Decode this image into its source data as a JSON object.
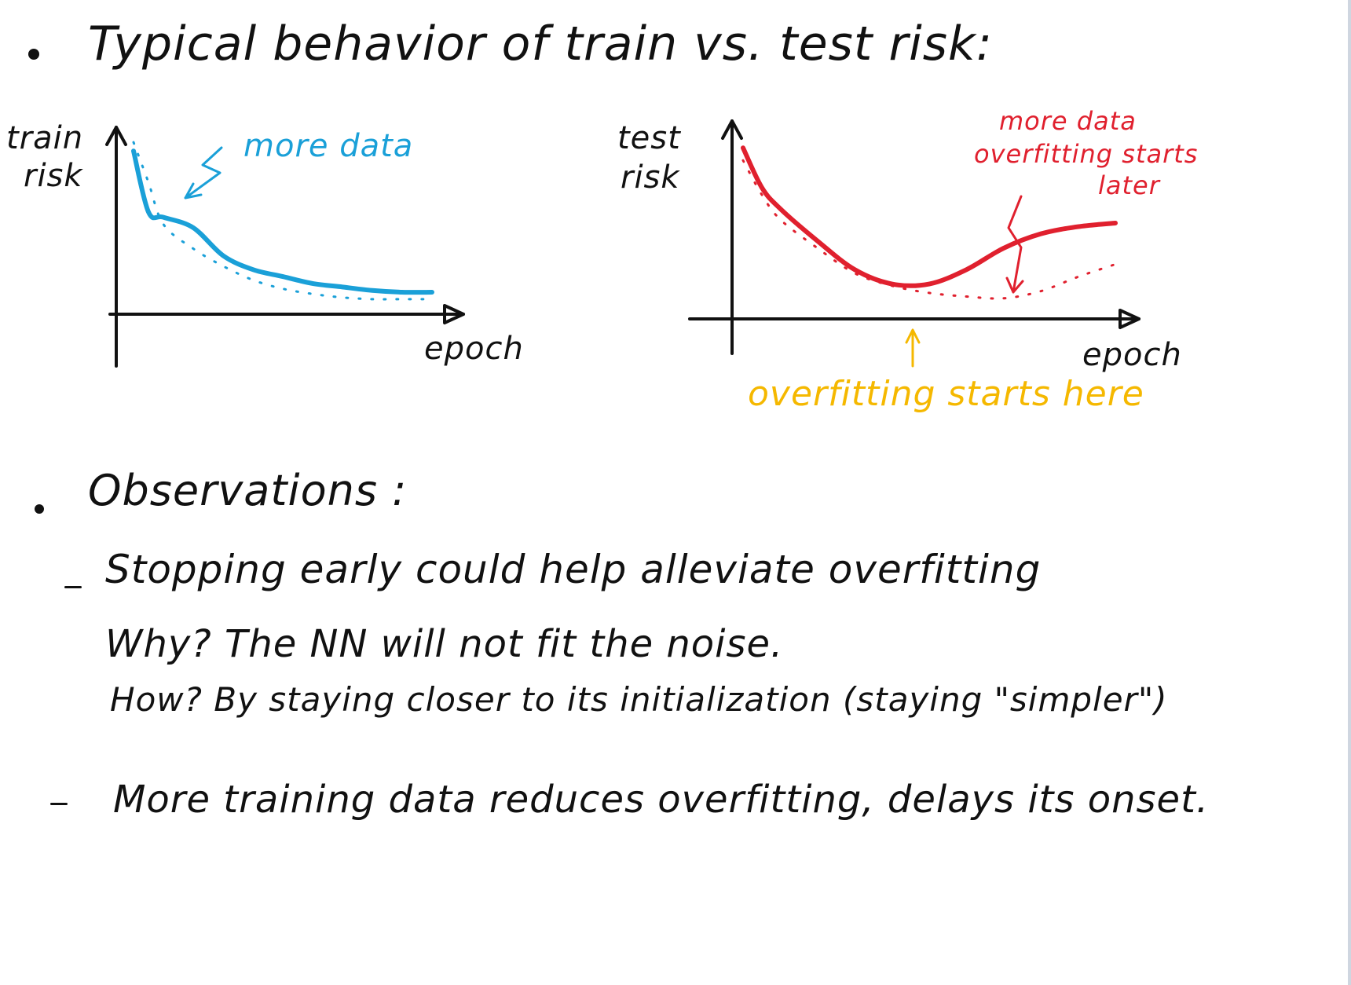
{
  "heading": "Typical behavior of train vs. test risk:",
  "colors": {
    "ink": "#111111",
    "train_curve": "#1aa0d8",
    "test_curve": "#e0202e",
    "annotation_orange": "#f5b800"
  },
  "chart_data": [
    {
      "type": "line",
      "title": "",
      "xlabel": "epoch",
      "ylabel": "train risk",
      "ylim": [
        0,
        1
      ],
      "x": [
        0.0,
        0.05,
        0.1,
        0.2,
        0.3,
        0.4,
        0.5,
        0.6,
        0.7,
        0.8,
        0.9,
        1.0
      ],
      "series": [
        {
          "name": "train risk",
          "style": "solid",
          "color": "#1aa0d8",
          "values": [
            0.9,
            0.55,
            0.52,
            0.46,
            0.3,
            0.22,
            0.18,
            0.14,
            0.12,
            0.1,
            0.09,
            0.09
          ]
        },
        {
          "name": "train risk (more data)",
          "style": "dotted",
          "color": "#1aa0d8",
          "values": [
            0.95,
            0.72,
            0.48,
            0.34,
            0.24,
            0.16,
            0.11,
            0.08,
            0.06,
            0.05,
            0.05,
            0.05
          ]
        }
      ],
      "annotations": [
        "more data"
      ]
    },
    {
      "type": "line",
      "title": "",
      "xlabel": "epoch",
      "ylabel": "test risk",
      "ylim": [
        0,
        1
      ],
      "x": [
        0.0,
        0.05,
        0.1,
        0.2,
        0.3,
        0.4,
        0.5,
        0.6,
        0.7,
        0.8,
        0.9,
        1.0
      ],
      "series": [
        {
          "name": "test risk",
          "style": "solid",
          "color": "#e0202e",
          "values": [
            0.92,
            0.7,
            0.58,
            0.4,
            0.24,
            0.16,
            0.16,
            0.24,
            0.36,
            0.44,
            0.48,
            0.5
          ]
        },
        {
          "name": "test risk (more data)",
          "style": "dotted",
          "color": "#e0202e",
          "values": [
            0.85,
            0.66,
            0.52,
            0.36,
            0.22,
            0.15,
            0.11,
            0.09,
            0.08,
            0.12,
            0.2,
            0.27
          ]
        }
      ],
      "annotations": [
        "more data overfitting starts later",
        "overfitting starts here"
      ]
    }
  ],
  "plot_left": {
    "ylabel_line1": "train",
    "ylabel_line2": "risk",
    "xlabel": "epoch",
    "annotation": "more data"
  },
  "plot_right": {
    "ylabel_line1": "test",
    "ylabel_line2": "risk",
    "xlabel": "epoch",
    "annotation_top_line1": "more data",
    "annotation_top_line2": "overfitting starts",
    "annotation_top_line3": "later",
    "annotation_bottom": "overfitting starts here"
  },
  "observations": {
    "title": "Observations :",
    "item1_line1": "Stopping early could help alleviate overfitting",
    "item1_why": "Why? The NN will not fit the noise.",
    "item1_how": "How? By staying closer to its initialization (staying \"simpler\")",
    "item2": "More training data reduces overfitting, delays its onset."
  }
}
